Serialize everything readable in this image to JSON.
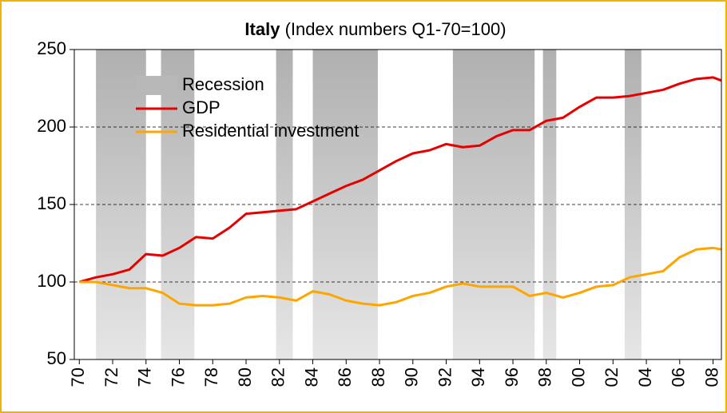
{
  "chart_data": {
    "type": "line",
    "title": "Italy",
    "subtitle": "(Index numbers Q1-70=100)",
    "x": [
      1970,
      1971,
      1972,
      1973,
      1974,
      1975,
      1976,
      1977,
      1978,
      1979,
      1980,
      1981,
      1982,
      1983,
      1984,
      1985,
      1986,
      1987,
      1988,
      1989,
      1990,
      1991,
      1992,
      1993,
      1994,
      1995,
      1996,
      1997,
      1998,
      1999,
      2000,
      2001,
      2002,
      2003,
      2004,
      2005,
      2006,
      2007,
      2008,
      2008.5
    ],
    "recessions": {
      "name": "Recession",
      "color": "#b8b8b8",
      "spans": [
        [
          1971.0,
          1974.0
        ],
        [
          1974.9,
          1976.9
        ],
        [
          1981.8,
          1982.8
        ],
        [
          1984.0,
          1987.9
        ],
        [
          1992.4,
          1997.3
        ],
        [
          1997.8,
          1998.6
        ],
        [
          2002.7,
          2003.7
        ]
      ]
    },
    "series": [
      {
        "name": "GDP",
        "color": "#e60000",
        "values": [
          100,
          103,
          105,
          108,
          118,
          117,
          122,
          129,
          128,
          135,
          144,
          145,
          146,
          147,
          152,
          157,
          162,
          166,
          172,
          178,
          183,
          185,
          189,
          187,
          188,
          194,
          198,
          198,
          204,
          206,
          213,
          219,
          219,
          220,
          222,
          224,
          228,
          231,
          232,
          230
        ]
      },
      {
        "name": "Residential investment",
        "color": "#ffa500",
        "values": [
          100,
          100,
          98,
          96,
          96,
          93,
          86,
          85,
          85,
          86,
          90,
          91,
          90,
          88,
          94,
          92,
          88,
          86,
          85,
          87,
          91,
          93,
          97,
          99,
          97,
          97,
          97,
          91,
          93,
          90,
          93,
          97,
          98,
          103,
          105,
          107,
          116,
          121,
          122,
          121
        ]
      }
    ],
    "xlim": [
      1969.7,
      2008.5
    ],
    "xticks": [
      {
        "value": 1970,
        "label": "70"
      },
      {
        "value": 1972,
        "label": "72"
      },
      {
        "value": 1974,
        "label": "74"
      },
      {
        "value": 1976,
        "label": "76"
      },
      {
        "value": 1978,
        "label": "78"
      },
      {
        "value": 1980,
        "label": "80"
      },
      {
        "value": 1982,
        "label": "82"
      },
      {
        "value": 1984,
        "label": "84"
      },
      {
        "value": 1986,
        "label": "86"
      },
      {
        "value": 1988,
        "label": "88"
      },
      {
        "value": 1990,
        "label": "90"
      },
      {
        "value": 1992,
        "label": "92"
      },
      {
        "value": 1994,
        "label": "94"
      },
      {
        "value": 1996,
        "label": "96"
      },
      {
        "value": 1998,
        "label": "98"
      },
      {
        "value": 2000,
        "label": "00"
      },
      {
        "value": 2002,
        "label": "02"
      },
      {
        "value": 2004,
        "label": "04"
      },
      {
        "value": 2006,
        "label": "06"
      },
      {
        "value": 2008,
        "label": "08"
      }
    ],
    "ylim": [
      50,
      250
    ],
    "yticks": [
      50,
      100,
      150,
      200,
      250
    ],
    "grid": true
  }
}
